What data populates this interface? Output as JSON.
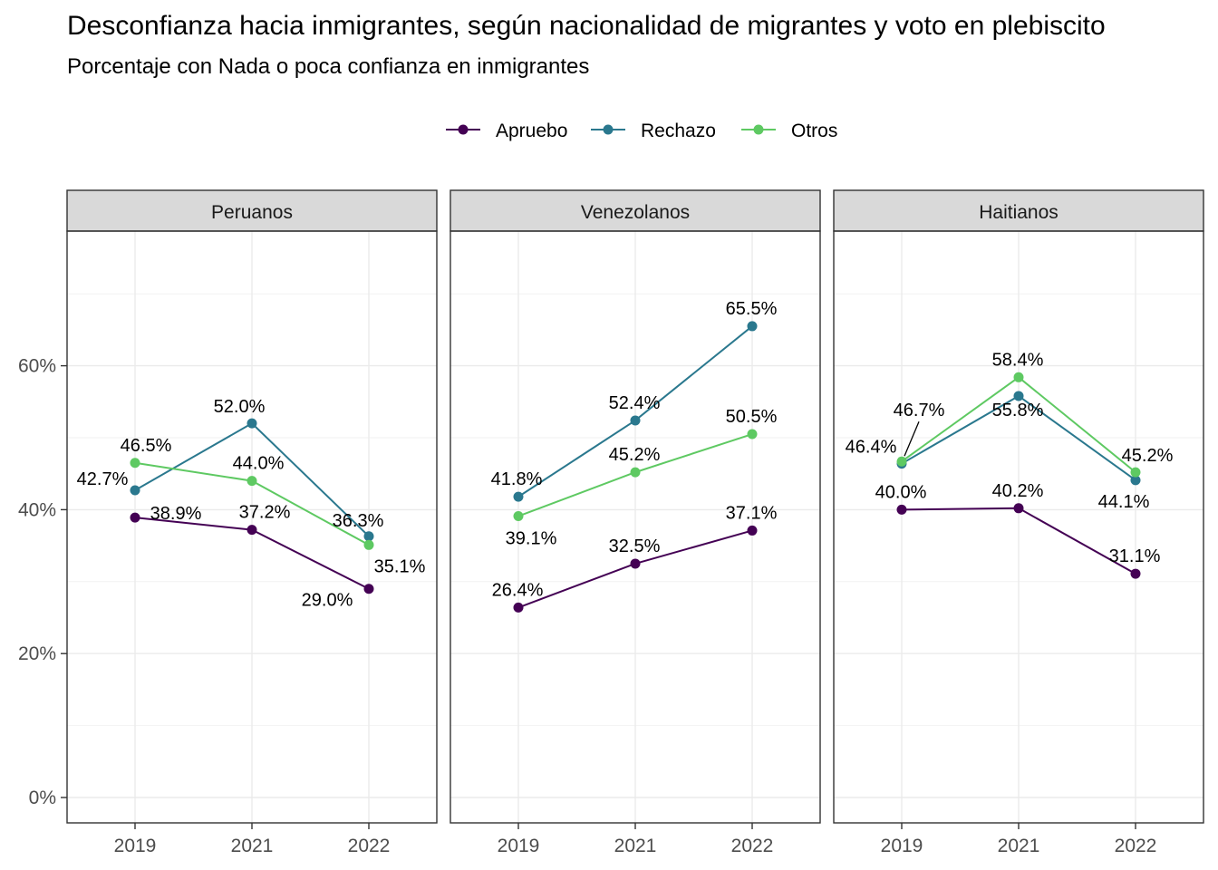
{
  "chart_data": {
    "type": "line",
    "title": "Desconfianza hacia inmigrantes, según nacionalidad de migrantes y voto en plebiscito",
    "subtitle": "Porcentaje con Nada o poca confianza en inmigrantes",
    "xlabel": "",
    "ylabel": "",
    "x": [
      "2019",
      "2021",
      "2022"
    ],
    "ylim": [
      0,
      0.8
    ],
    "yticks": [
      {
        "value": 0,
        "label": "0%"
      },
      {
        "value": 0.2,
        "label": "20%"
      },
      {
        "value": 0.4,
        "label": "40%"
      },
      {
        "value": 0.6,
        "label": "60%"
      }
    ],
    "grid": true,
    "legend_position": "top",
    "series_colors": {
      "Apruebo": "#440154",
      "Rechazo": "#2A788E",
      "Otros": "#5EC962"
    },
    "facets": [
      {
        "name": "Peruanos",
        "series": [
          {
            "name": "Apruebo",
            "values": [
              0.389,
              0.372,
              0.29
            ],
            "labels": [
              "38.9%",
              "37.2%",
              "29.0%"
            ]
          },
          {
            "name": "Rechazo",
            "values": [
              0.427,
              0.52,
              0.363
            ],
            "labels": [
              "42.7%",
              "52.0%",
              "36.3%"
            ]
          },
          {
            "name": "Otros",
            "values": [
              0.465,
              0.44,
              0.351
            ],
            "labels": [
              "46.5%",
              "44.0%",
              "35.1%"
            ]
          }
        ]
      },
      {
        "name": "Venezolanos",
        "series": [
          {
            "name": "Apruebo",
            "values": [
              0.264,
              0.325,
              0.371
            ],
            "labels": [
              "26.4%",
              "32.5%",
              "37.1%"
            ]
          },
          {
            "name": "Rechazo",
            "values": [
              0.418,
              0.524,
              0.655
            ],
            "labels": [
              "41.8%",
              "52.4%",
              "65.5%"
            ]
          },
          {
            "name": "Otros",
            "values": [
              0.391,
              0.452,
              0.505
            ],
            "labels": [
              "39.1%",
              "45.2%",
              "50.5%"
            ]
          }
        ]
      },
      {
        "name": "Haitianos",
        "series": [
          {
            "name": "Apruebo",
            "values": [
              0.4,
              0.402,
              0.311
            ],
            "labels": [
              "40.0%",
              "40.2%",
              "31.1%"
            ]
          },
          {
            "name": "Rechazo",
            "values": [
              0.464,
              0.558,
              0.441
            ],
            "labels": [
              "46.4%",
              "55.8%",
              "44.1%"
            ]
          },
          {
            "name": "Otros",
            "values": [
              0.467,
              0.584,
              0.452
            ],
            "labels": [
              "46.7%",
              "58.4%",
              "45.2%"
            ]
          }
        ]
      }
    ]
  }
}
